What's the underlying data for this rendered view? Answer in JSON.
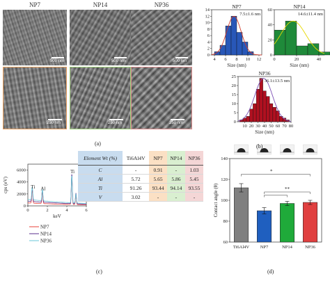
{
  "panel_a": {
    "columns": [
      "NP7",
      "NP14",
      "NP36"
    ],
    "scale_top": [
      "500 nm",
      "500 nm",
      "500 nm"
    ],
    "scale_bottom": [
      "250 nm",
      "250 nm",
      "250 nm"
    ],
    "frame_colors_bottom": [
      "#e8a060",
      "#9fd07a",
      "#d98a8a"
    ],
    "label": "(a)"
  },
  "panel_b_label": "(b)",
  "panel_c_label": "(c)",
  "panel_d_label": "(d)",
  "chart_data": [
    {
      "type": "bar",
      "panel": "b-NP7",
      "title": "NP7",
      "annotation": "7.5±1.6 nm",
      "xlabel": "Size (nm)",
      "xlim": [
        3.5,
        12.5
      ],
      "xticks": [
        4,
        6,
        8,
        10,
        12
      ],
      "ylim": [
        0,
        14
      ],
      "yticks": [
        0,
        2,
        4,
        6,
        8,
        10,
        12,
        14
      ],
      "x": [
        4.5,
        5.5,
        6.5,
        7.5,
        8.5,
        9.5,
        10.5,
        11.5
      ],
      "values": [
        1,
        3,
        9,
        12,
        7,
        4,
        1,
        0
      ],
      "color": "#2857b8",
      "fit_color": "#d03a2a"
    },
    {
      "type": "bar",
      "panel": "b-NP14",
      "title": "NP14",
      "annotation": "14.6±11.4 nm",
      "xlabel": "Size (nm)",
      "xlim": [
        0,
        45
      ],
      "xticks": [
        0,
        20,
        40
      ],
      "ylim": [
        0,
        60
      ],
      "yticks": [
        0,
        20,
        40,
        60
      ],
      "x": [
        5,
        15,
        25,
        35,
        45
      ],
      "values": [
        33,
        45,
        12,
        15,
        4
      ],
      "color": "#1f8a3a",
      "fit_color": "#e8d800"
    },
    {
      "type": "bar",
      "panel": "b-NP36",
      "title": "NP36",
      "annotation": "36.1±13.5 nm",
      "xlabel": "Size (nm)",
      "xlim": [
        0,
        80
      ],
      "xticks": [
        10,
        20,
        30,
        40,
        50,
        60,
        70,
        80
      ],
      "ylim": [
        0,
        25
      ],
      "yticks": [
        0,
        5,
        10,
        15,
        20,
        25
      ],
      "x": [
        5,
        10,
        15,
        20,
        25,
        30,
        35,
        40,
        45,
        50,
        55,
        60,
        65,
        70,
        75
      ],
      "values": [
        1,
        2,
        3,
        7,
        10,
        18,
        24,
        17,
        14,
        10,
        8,
        6,
        3,
        2,
        1
      ],
      "color": "#b01020",
      "fit_color": "#7c4fb5"
    },
    {
      "type": "line",
      "panel": "c-EDX",
      "xlabel": "keV",
      "ylabel": "cps (eV)",
      "xlim": [
        0,
        6
      ],
      "xticks": [
        0,
        2,
        4,
        6
      ],
      "ylim": [
        0,
        7000
      ],
      "yticks": [
        0,
        2000,
        4000,
        6000
      ],
      "peak_labels": [
        {
          "text": "Ti",
          "x": 0.45
        },
        {
          "text": "Al",
          "x": 1.49
        },
        {
          "text": "Ti",
          "x": 4.51
        }
      ],
      "series": [
        {
          "name": "NP7",
          "color": "#e8413a",
          "baseline": 500,
          "peaks": [
            [
              0.45,
              2300
            ],
            [
              1.49,
              2000
            ],
            [
              4.51,
              4800
            ],
            [
              4.93,
              1600
            ]
          ]
        },
        {
          "name": "NP14",
          "color": "#5a2d8c",
          "baseline": 800,
          "peaks": [
            [
              0.45,
              2400
            ],
            [
              1.49,
              2100
            ],
            [
              4.51,
              5000
            ],
            [
              4.93,
              1800
            ]
          ]
        },
        {
          "name": "NP36",
          "color": "#69c7d8",
          "baseline": 1100,
          "peaks": [
            [
              0.45,
              2200
            ],
            [
              1.49,
              1900
            ],
            [
              4.51,
              4600
            ],
            [
              4.93,
              1500
            ]
          ]
        }
      ]
    },
    {
      "type": "table",
      "panel": "c-table",
      "header": [
        "Element Wt (%)",
        "Ti6Al4V",
        "NP7",
        "NP14",
        "NP36"
      ],
      "rows": [
        [
          "C",
          "-",
          "0.91",
          "-",
          "1.03"
        ],
        [
          "Al",
          "5.72",
          "5.65",
          "5.86",
          "5.45"
        ],
        [
          "Ti",
          "91.26",
          "93.44",
          "94.14",
          "93.55"
        ],
        [
          "V",
          "3.02",
          "-",
          "-",
          "-"
        ]
      ],
      "column_colors": [
        "#c8dcef",
        "#ffffff",
        "#fbe0c4",
        "#d9efd0",
        "#f4d6d6"
      ]
    },
    {
      "type": "bar",
      "panel": "d-contact-angle",
      "ylabel": "Contact angle (θ)",
      "categories": [
        "Ti6Al4V",
        "NP7",
        "NP14",
        "NP36"
      ],
      "values": [
        112,
        90,
        97,
        98
      ],
      "errors": [
        4,
        3,
        2,
        2
      ],
      "colors": [
        "#7f7f7f",
        "#1f5fbf",
        "#1faa3a",
        "#e04040"
      ],
      "ylim": [
        60,
        140
      ],
      "yticks": [
        60,
        80,
        100,
        120,
        140
      ],
      "significance": [
        "*",
        "**"
      ]
    }
  ]
}
